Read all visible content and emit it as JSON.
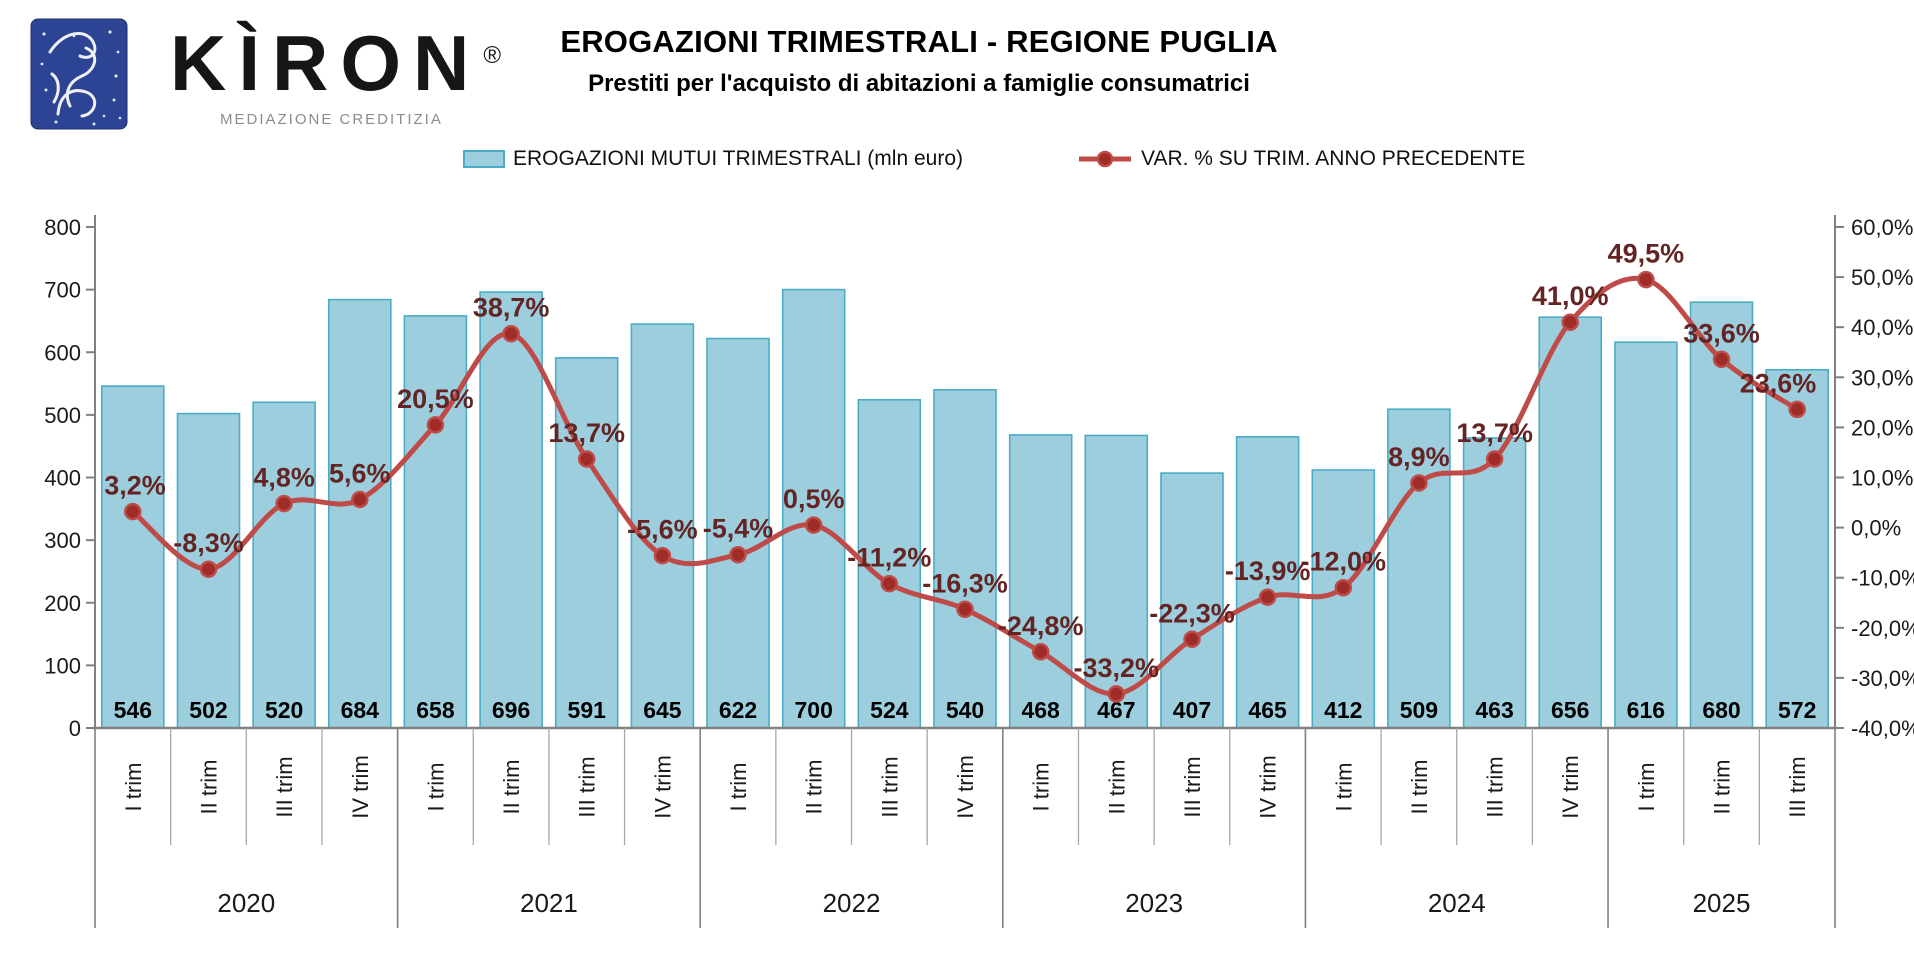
{
  "logo": {
    "brand": "KÌRON",
    "registered": "®",
    "tagline": "MEDIAZIONE CREDITIZIA"
  },
  "header": {
    "title": "EROGAZIONI TRIMESTRALI - REGIONE PUGLIA",
    "subtitle": "Prestiti per l'acquisto di abitazioni a famiglie consumatrici"
  },
  "legend": {
    "bars": "EROGAZIONI MUTUI TRIMESTRALI (mln euro)",
    "line": "VAR. % SU TRIM. ANNO PRECEDENTE"
  },
  "chart_data": {
    "type": "bar+line",
    "title": "EROGAZIONI TRIMESTRALI - REGIONE PUGLIA",
    "subtitle": "Prestiti per l'acquisto di abitazioni a famiglie consumatrici",
    "years": [
      {
        "label": "2020",
        "quarters": [
          "I trim",
          "II trim",
          "III trim",
          "IV trim"
        ]
      },
      {
        "label": "2021",
        "quarters": [
          "I trim",
          "II trim",
          "III trim",
          "IV trim"
        ]
      },
      {
        "label": "2022",
        "quarters": [
          "I trim",
          "II trim",
          "III trim",
          "IV trim"
        ]
      },
      {
        "label": "2023",
        "quarters": [
          "I trim",
          "II trim",
          "III trim",
          "IV trim"
        ]
      },
      {
        "label": "2024",
        "quarters": [
          "I trim",
          "II trim",
          "III trim",
          "IV trim"
        ]
      },
      {
        "label": "2025",
        "quarters": [
          "I trim",
          "II trim",
          "III trim"
        ]
      }
    ],
    "series": [
      {
        "name": "EROGAZIONI MUTUI TRIMESTRALI (mln euro)",
        "type": "bar",
        "axis": "left",
        "values": [
          546,
          502,
          520,
          684,
          658,
          696,
          591,
          645,
          622,
          700,
          524,
          540,
          468,
          467,
          407,
          465,
          412,
          509,
          463,
          656,
          616,
          680,
          572
        ]
      },
      {
        "name": "VAR. % SU TRIM. ANNO PRECEDENTE",
        "type": "line",
        "axis": "right",
        "values": [
          3.2,
          -8.3,
          4.8,
          5.6,
          20.5,
          38.7,
          13.7,
          -5.6,
          -5.4,
          0.5,
          -11.2,
          -16.3,
          -24.8,
          -33.2,
          -22.3,
          -13.9,
          -12.0,
          8.9,
          13.7,
          41.0,
          49.5,
          33.6,
          23.6
        ],
        "labels": [
          "3,2%",
          "-8,3%",
          "4,8%",
          "5,6%",
          "20,5%",
          "38,7%",
          "13,7%",
          "-5,6%",
          "-5,4%",
          "0,5%",
          "-11,2%",
          "-16,3%",
          "-24,8%",
          "-33,2%",
          "-22,3%",
          "-13,9%",
          "-12,0%",
          "8,9%",
          "13,7%",
          "41,0%",
          "49,5%",
          "33,6%",
          "23,6%"
        ]
      }
    ],
    "left_axis": {
      "min": 0,
      "max": 800,
      "step": 100,
      "tick_labels": [
        "0",
        "100",
        "200",
        "300",
        "400",
        "500",
        "600",
        "700",
        "800"
      ]
    },
    "right_axis": {
      "min": -40,
      "max": 60,
      "step": 10,
      "tick_labels": [
        "-40,0%",
        "-30,0%",
        "-20,0%",
        "-10,0%",
        "0,0%",
        "10,0%",
        "20,0%",
        "30,0%",
        "40,0%",
        "50,0%",
        "60,0%"
      ]
    },
    "legend_position": "top",
    "grid": false,
    "colors": {
      "bar_fill": "#9dcedd",
      "bar_border": "#4bacc6",
      "line": "#be4b48",
      "marker_fill": "#a02c28",
      "pct_label": "#632423",
      "axis_line": "#808080",
      "quarter_separator": "#a6a6a6",
      "logo_blue": "#2d4394"
    }
  }
}
